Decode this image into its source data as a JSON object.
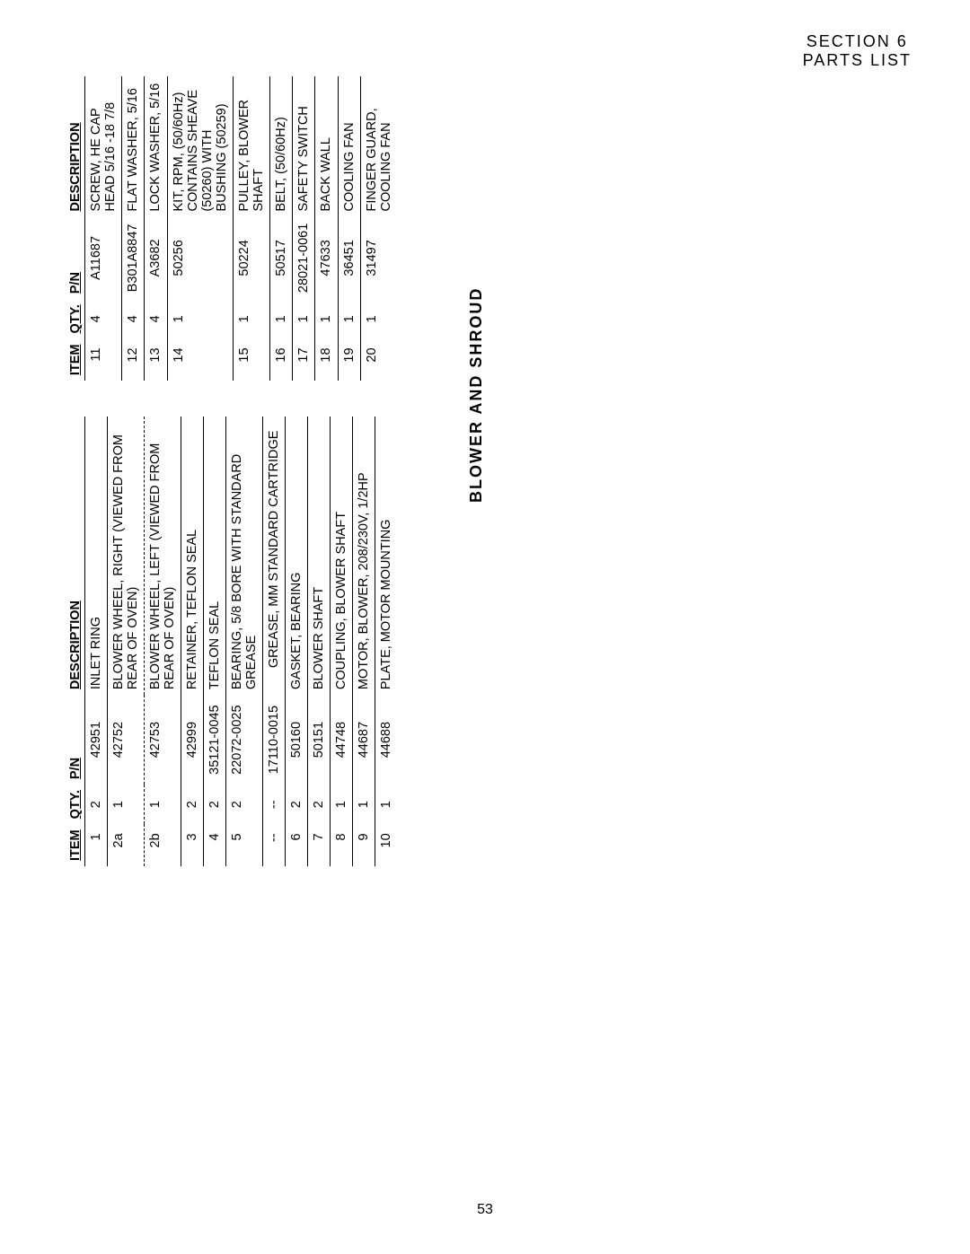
{
  "header": {
    "line1": "SECTION 6",
    "line2": "PARTS LIST"
  },
  "section_title": "BLOWER AND SHROUD",
  "page_number": "53",
  "labels": {
    "item": "ITEM",
    "qty": "QTY.",
    "pn": "P/N",
    "desc": "DESCRIPTION"
  },
  "table_left": [
    {
      "item": "1",
      "qty": "2",
      "pn": "42951",
      "desc": "INLET RING"
    },
    {
      "item": "2a",
      "qty": "1",
      "pn": "42752",
      "desc": "BLOWER WHEEL, RIGHT (VIEWED FROM REAR OF OVEN)",
      "dashed": true
    },
    {
      "item": "2b",
      "qty": "1",
      "pn": "42753",
      "desc": "BLOWER WHEEL, LEFT (VIEWED FROM REAR OF OVEN)"
    },
    {
      "item": "3",
      "qty": "2",
      "pn": "42999",
      "desc": "RETAINER, TEFLON SEAL"
    },
    {
      "item": "4",
      "qty": "2",
      "pn": "35121-0045",
      "desc": "TEFLON SEAL"
    },
    {
      "item": "5",
      "qty": "2",
      "pn": "22072-0025",
      "desc": "BEARING, 5/8 BORE WITH STANDARD GREASE"
    },
    {
      "item": "--",
      "qty": "--",
      "pn": "17110-0015",
      "desc": "",
      "sub": "GREASE, MM STANDARD CARTRIDGE"
    },
    {
      "item": "6",
      "qty": "2",
      "pn": "50160",
      "desc": "GASKET, BEARING"
    },
    {
      "item": "7",
      "qty": "2",
      "pn": "50151",
      "desc": "BLOWER SHAFT"
    },
    {
      "item": "8",
      "qty": "1",
      "pn": "44748",
      "desc": "COUPLING, BLOWER SHAFT"
    },
    {
      "item": "9",
      "qty": "1",
      "pn": "44687",
      "desc": "MOTOR, BLOWER, 208/230V, 1/2HP"
    },
    {
      "item": "10",
      "qty": "1",
      "pn": "44688",
      "desc": "PLATE, MOTOR MOUNTING",
      "last": true
    }
  ],
  "table_right": [
    {
      "item": "11",
      "qty": "4",
      "pn": "A11687",
      "desc": "SCREW, HE   CAP HEAD 5/16 -18   7/8"
    },
    {
      "item": "12",
      "qty": "4",
      "pn": "B301A8847",
      "desc": "FLAT WASHER, 5/16"
    },
    {
      "item": "13",
      "qty": "4",
      "pn": "A3682",
      "desc": "LOCK WASHER, 5/16"
    },
    {
      "item": "14",
      "qty": "1",
      "pn": "50256",
      "desc": "KIT, RPM, (50/60Hz) CONTAINS SHEAVE (50260) WITH BUSHING (50259)"
    },
    {
      "item": "15",
      "qty": "1",
      "pn": "50224",
      "desc": "PULLEY, BLOWER SHAFT"
    },
    {
      "item": "16",
      "qty": "1",
      "pn": "50517",
      "desc": "BELT, (50/60Hz)"
    },
    {
      "item": "17",
      "qty": "1",
      "pn": "28021-0061",
      "desc": "SAFETY SWITCH"
    },
    {
      "item": "18",
      "qty": "1",
      "pn": "47633",
      "desc": "BACK WALL"
    },
    {
      "item": "19",
      "qty": "1",
      "pn": "36451",
      "desc": "COOLING FAN"
    },
    {
      "item": "20",
      "qty": "1",
      "pn": "31497",
      "desc": "FINGER GUARD, COOLING FAN",
      "last": true
    }
  ]
}
